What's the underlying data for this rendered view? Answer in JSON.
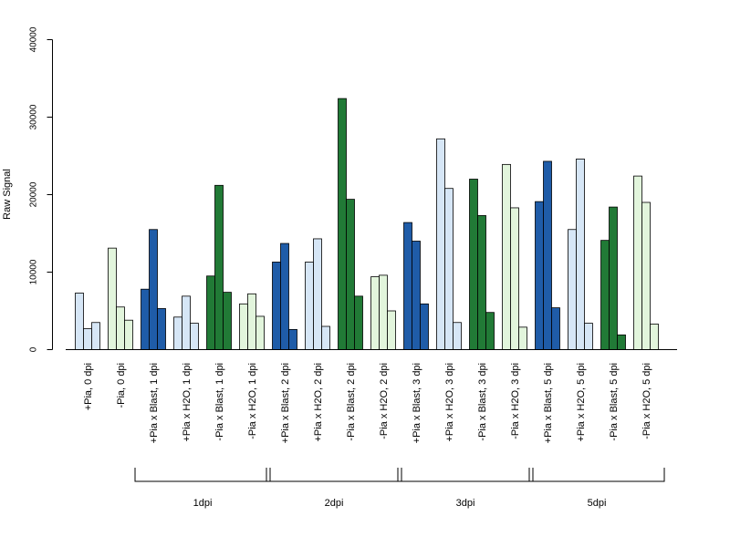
{
  "chart_data": {
    "type": "bar",
    "ylabel": "Raw Signal",
    "ylim": [
      0,
      40000
    ],
    "yticks": [
      0,
      10000,
      20000,
      30000,
      40000
    ],
    "bars_per_category": 3,
    "categories": [
      "+Pia, 0 dpi",
      "-Pia, 0 dpi",
      "+Pia x Blast, 1 dpi",
      "+Pia x H2O, 1 dpi",
      "-Pia x Blast, 1 dpi",
      "-Pia x H2O, 1 dpi",
      "+Pia x Blast, 2 dpi",
      "+Pia x H2O, 2 dpi",
      "-Pia x Blast, 2 dpi",
      "-Pia x H2O, 2 dpi",
      "+Pia x Blast, 3 dpi",
      "+Pia x H2O, 3 dpi",
      "-Pia x Blast, 3 dpi",
      "-Pia x H2O, 3 dpi",
      "+Pia x Blast, 5 dpi",
      "+Pia x H2O, 5 dpi",
      "-Pia x Blast, 5 dpi",
      "-Pia x H2O, 5 dpi"
    ],
    "values": [
      [
        7300,
        2700,
        3500
      ],
      [
        13100,
        5500,
        3800
      ],
      [
        7800,
        15500,
        5300
      ],
      [
        4200,
        6900,
        3400
      ],
      [
        9500,
        21200,
        7400
      ],
      [
        5900,
        7200,
        4300
      ],
      [
        11300,
        13700,
        2600
      ],
      [
        11300,
        14300,
        3000
      ],
      [
        32400,
        19400,
        6900
      ],
      [
        9400,
        9600,
        5000
      ],
      [
        16400,
        14000,
        5900
      ],
      [
        27200,
        20800,
        3500
      ],
      [
        22000,
        17300,
        4800
      ],
      [
        23900,
        18300,
        2900
      ],
      [
        19100,
        24300,
        5400
      ],
      [
        15500,
        24600,
        3400
      ],
      [
        14100,
        18400,
        1900
      ],
      [
        22400,
        19000,
        3300
      ]
    ],
    "bar_colors": [
      "#d6e6f6",
      "#e2f5dc",
      "#1f5ca8",
      "#d6e6f6",
      "#217a36",
      "#e2f5dc",
      "#1f5ca8",
      "#d6e6f6",
      "#217a36",
      "#e2f5dc",
      "#1f5ca8",
      "#d6e6f6",
      "#217a36",
      "#e2f5dc",
      "#1f5ca8",
      "#d6e6f6",
      "#217a36",
      "#e2f5dc"
    ],
    "groups": [
      {
        "label": "1dpi",
        "from": 2,
        "to": 5
      },
      {
        "label": "2dpi",
        "from": 6,
        "to": 9
      },
      {
        "label": "3dpi",
        "from": 10,
        "to": 13
      },
      {
        "label": "5dpi",
        "from": 14,
        "to": 17
      }
    ]
  }
}
